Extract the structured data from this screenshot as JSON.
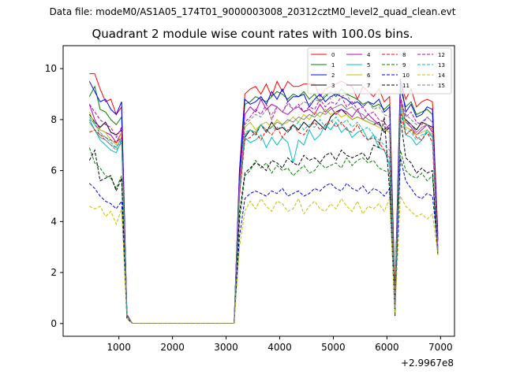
{
  "figure": {
    "suptitle": "Data file: modeM0/AS1A05_174T01_9000003008_20312cztM0_level2_quad_clean.evt",
    "title": "Quadrant 2 module wise count rates with 100.0s bins.",
    "offset_text": "+2.9967e8"
  },
  "chart_data": {
    "type": "line",
    "title": "Quadrant 2 module wise count rates with 100.0s bins.",
    "xlabel": "",
    "ylabel": "",
    "x_offset": 299670000,
    "xlim": [
      -40,
      7260
    ],
    "ylim": [
      -0.5,
      10.9
    ],
    "xticks": [
      1000,
      2000,
      3000,
      4000,
      5000,
      6000,
      7000
    ],
    "xtick_labels": [
      "1000",
      "2000",
      "3000",
      "4000",
      "5000",
      "6000",
      "7000"
    ],
    "yticks": [
      0,
      2,
      4,
      6,
      8,
      10
    ],
    "ytick_labels": [
      "0",
      "2",
      "4",
      "6",
      "8",
      "10"
    ],
    "grid": false,
    "legend_position": "top-right",
    "legend_columns": 4,
    "x": [
      450,
      550,
      650,
      750,
      850,
      950,
      1050,
      1150,
      1250,
      1350,
      1450,
      1550,
      1650,
      1750,
      1850,
      1950,
      2050,
      2150,
      2250,
      2350,
      2450,
      2550,
      2650,
      2750,
      2850,
      2950,
      3050,
      3150,
      3250,
      3350,
      3450,
      3550,
      3650,
      3750,
      3850,
      3950,
      4050,
      4150,
      4250,
      4350,
      4450,
      4550,
      4650,
      4750,
      4850,
      4950,
      5050,
      5150,
      5250,
      5350,
      5450,
      5550,
      5650,
      5750,
      5850,
      5950,
      6050,
      6150,
      6250,
      6350,
      6450,
      6550,
      6650,
      6750,
      6850,
      6950
    ],
    "series": [
      {
        "name": "0",
        "color": "#ff0000",
        "style": "solid",
        "values": [
          9.8,
          9.8,
          9.2,
          8.7,
          8.8,
          8.2,
          8.5,
          0.35,
          0.01,
          0.01,
          0.01,
          0.01,
          0.01,
          0.01,
          0.01,
          0.01,
          0.01,
          0.01,
          0.01,
          0.01,
          0.01,
          0.01,
          0.01,
          0.01,
          0.01,
          0.01,
          0.01,
          0.01,
          6.0,
          9.0,
          9.2,
          9.3,
          9.0,
          9.4,
          8.9,
          9.5,
          9.1,
          9.5,
          9.3,
          9.3,
          9.4,
          9.4,
          9.4,
          8.9,
          9.2,
          9.3,
          9.4,
          9.5,
          9.4,
          9.3,
          8.8,
          9.3,
          9.1,
          8.9,
          9.2,
          8.7,
          8.9,
          1.2,
          9.5,
          8.8,
          9.2,
          8.5,
          8.7,
          8.8,
          8.7,
          3.5
        ]
      },
      {
        "name": "1",
        "color": "#008000",
        "style": "solid",
        "values": [
          8.9,
          9.3,
          8.4,
          8.3,
          8.0,
          7.8,
          8.1,
          0.3,
          0.01,
          0.01,
          0.01,
          0.01,
          0.01,
          0.01,
          0.01,
          0.01,
          0.01,
          0.01,
          0.01,
          0.01,
          0.01,
          0.01,
          0.01,
          0.01,
          0.01,
          0.01,
          0.01,
          0.01,
          5.8,
          8.6,
          8.7,
          8.9,
          8.8,
          8.7,
          8.9,
          9.1,
          9.0,
          8.8,
          9.0,
          8.9,
          9.1,
          8.8,
          9.0,
          8.7,
          8.9,
          9.1,
          8.9,
          9.2,
          9.0,
          8.9,
          8.8,
          8.6,
          8.7,
          8.5,
          8.6,
          8.4,
          8.6,
          1.0,
          9.2,
          8.5,
          8.7,
          8.2,
          8.3,
          8.4,
          8.2,
          3.2
        ]
      },
      {
        "name": "2",
        "color": "#0000ff",
        "style": "solid",
        "values": [
          9.5,
          9.1,
          8.7,
          8.8,
          8.4,
          8.2,
          8.7,
          0.35,
          0.01,
          0.01,
          0.01,
          0.01,
          0.01,
          0.01,
          0.01,
          0.01,
          0.01,
          0.01,
          0.01,
          0.01,
          0.01,
          0.01,
          0.01,
          0.01,
          0.01,
          0.01,
          0.01,
          0.01,
          6.0,
          8.8,
          8.6,
          8.7,
          8.9,
          8.6,
          9.1,
          8.8,
          9.2,
          8.7,
          8.9,
          8.9,
          9.0,
          8.5,
          8.8,
          9.0,
          8.7,
          8.9,
          9.0,
          8.9,
          8.8,
          8.6,
          8.7,
          8.5,
          8.7,
          8.6,
          8.8,
          8.3,
          8.5,
          0.8,
          9.6,
          8.3,
          8.6,
          8.1,
          8.2,
          8.5,
          8.4,
          3.3
        ]
      },
      {
        "name": "3",
        "color": "#000000",
        "style": "solid",
        "values": [
          8.2,
          7.9,
          7.7,
          7.9,
          7.5,
          7.4,
          7.6,
          0.3,
          0.01,
          0.01,
          0.01,
          0.01,
          0.01,
          0.01,
          0.01,
          0.01,
          0.01,
          0.01,
          0.01,
          0.01,
          0.01,
          0.01,
          0.01,
          0.01,
          0.01,
          0.01,
          0.01,
          0.01,
          5.2,
          7.3,
          7.6,
          7.4,
          7.8,
          7.5,
          7.9,
          7.6,
          7.7,
          7.5,
          7.8,
          7.6,
          7.9,
          7.7,
          8.0,
          7.8,
          7.6,
          8.1,
          8.3,
          8.4,
          8.2,
          8.0,
          8.1,
          8.0,
          7.9,
          7.8,
          7.9,
          7.5,
          7.7,
          0.9,
          8.2,
          8.0,
          7.8,
          7.6,
          7.9,
          7.8,
          7.7,
          2.7
        ]
      },
      {
        "name": "4",
        "color": "#c000c0",
        "style": "solid",
        "values": [
          8.6,
          8.0,
          7.6,
          7.5,
          7.4,
          7.1,
          7.5,
          0.3,
          0.01,
          0.01,
          0.01,
          0.01,
          0.01,
          0.01,
          0.01,
          0.01,
          0.01,
          0.01,
          0.01,
          0.01,
          0.01,
          0.01,
          0.01,
          0.01,
          0.01,
          0.01,
          0.01,
          0.01,
          5.6,
          8.2,
          8.5,
          8.3,
          8.8,
          8.4,
          8.6,
          8.5,
          8.3,
          8.2,
          8.4,
          8.5,
          8.3,
          8.4,
          8.2,
          8.6,
          8.3,
          8.5,
          8.2,
          8.4,
          8.3,
          8.1,
          8.4,
          8.0,
          8.2,
          8.0,
          7.8,
          7.6,
          7.8,
          0.7,
          8.8,
          7.9,
          7.7,
          7.4,
          7.6,
          7.8,
          7.5,
          2.9
        ]
      },
      {
        "name": "5",
        "color": "#00c0c0",
        "style": "solid",
        "values": [
          8.0,
          7.6,
          7.2,
          7.0,
          6.8,
          6.7,
          7.2,
          0.3,
          0.01,
          0.01,
          0.01,
          0.01,
          0.01,
          0.01,
          0.01,
          0.01,
          0.01,
          0.01,
          0.01,
          0.01,
          0.01,
          0.01,
          0.01,
          0.01,
          0.01,
          0.01,
          0.01,
          0.01,
          5.1,
          7.3,
          7.1,
          7.2,
          7.4,
          6.9,
          7.3,
          7.0,
          7.3,
          7.1,
          6.3,
          7.2,
          7.0,
          7.6,
          7.2,
          7.4,
          7.8,
          7.6,
          7.9,
          7.5,
          7.7,
          7.3,
          7.5,
          7.6,
          7.2,
          7.4,
          6.9,
          6.8,
          6.2,
          0.6,
          8.6,
          7.4,
          7.3,
          7.0,
          7.2,
          7.6,
          7.3,
          2.8
        ]
      },
      {
        "name": "6",
        "color": "#c0c000",
        "style": "solid",
        "values": [
          8.3,
          7.8,
          7.6,
          7.5,
          7.2,
          7.0,
          7.5,
          0.3,
          0.01,
          0.01,
          0.01,
          0.01,
          0.01,
          0.01,
          0.01,
          0.01,
          0.01,
          0.01,
          0.01,
          0.01,
          0.01,
          0.01,
          0.01,
          0.01,
          0.01,
          0.01,
          0.01,
          0.01,
          5.3,
          7.7,
          7.9,
          7.6,
          7.8,
          7.9,
          7.7,
          8.0,
          7.8,
          7.9,
          8.1,
          7.9,
          8.2,
          8.0,
          8.3,
          8.1,
          8.4,
          8.2,
          8.3,
          8.1,
          8.2,
          8.0,
          8.1,
          8.0,
          7.9,
          7.8,
          7.7,
          7.6,
          7.5,
          0.6,
          8.6,
          7.7,
          7.6,
          7.4,
          7.5,
          7.6,
          7.4,
          2.9
        ]
      },
      {
        "name": "7",
        "color": "#808080",
        "style": "solid",
        "values": [
          7.9,
          7.6,
          7.3,
          7.2,
          7.0,
          6.9,
          7.3,
          0.3,
          0.01,
          0.01,
          0.01,
          0.01,
          0.01,
          0.01,
          0.01,
          0.01,
          0.01,
          0.01,
          0.01,
          0.01,
          0.01,
          0.01,
          0.01,
          0.01,
          0.01,
          0.01,
          0.01,
          0.01,
          5.0,
          7.4,
          7.6,
          7.5,
          7.8,
          7.6,
          7.7,
          7.9,
          7.8,
          8.0,
          7.9,
          8.1,
          8.0,
          8.2,
          8.1,
          8.3,
          8.2,
          8.4,
          8.5,
          8.6,
          8.4,
          8.5,
          8.3,
          8.2,
          8.0,
          7.9,
          7.8,
          7.6,
          7.7,
          0.6,
          8.9,
          7.9,
          7.8,
          7.5,
          7.7,
          7.8,
          7.6,
          2.8
        ]
      },
      {
        "name": "8",
        "color": "#ff0000",
        "style": "dashed",
        "values": [
          7.5,
          7.6,
          7.4,
          7.3,
          7.2,
          7.1,
          7.3,
          0.3,
          0.01,
          0.01,
          0.01,
          0.01,
          0.01,
          0.01,
          0.01,
          0.01,
          0.01,
          0.01,
          0.01,
          0.01,
          0.01,
          0.01,
          0.01,
          0.01,
          0.01,
          0.01,
          0.01,
          0.01,
          5.0,
          7.2,
          7.3,
          7.5,
          7.2,
          7.6,
          7.4,
          7.7,
          7.3,
          7.6,
          7.8,
          7.5,
          7.4,
          7.7,
          7.9,
          7.6,
          7.8,
          8.0,
          7.7,
          7.9,
          7.6,
          7.5,
          7.8,
          7.4,
          7.2,
          7.3,
          7.1,
          6.8,
          6.5,
          0.5,
          8.3,
          7.4,
          7.6,
          7.3,
          7.2,
          7.5,
          7.1,
          2.7
        ]
      },
      {
        "name": "9",
        "color": "#008000",
        "style": "dashed",
        "values": [
          6.9,
          6.3,
          6.1,
          5.8,
          5.7,
          5.3,
          5.8,
          0.2,
          0.01,
          0.01,
          0.01,
          0.01,
          0.01,
          0.01,
          0.01,
          0.01,
          0.01,
          0.01,
          0.01,
          0.01,
          0.01,
          0.01,
          0.01,
          0.01,
          0.01,
          0.01,
          0.01,
          0.01,
          4.0,
          5.8,
          6.0,
          6.4,
          6.1,
          6.3,
          5.9,
          6.2,
          6.0,
          6.1,
          5.8,
          6.0,
          6.2,
          5.9,
          6.0,
          6.3,
          6.1,
          6.2,
          6.3,
          6.1,
          6.5,
          6.2,
          6.4,
          6.5,
          6.3,
          6.4,
          6.1,
          6.0,
          5.9,
          0.4,
          6.8,
          6.0,
          5.8,
          5.7,
          5.9,
          5.6,
          5.8,
          2.7
        ]
      },
      {
        "name": "10",
        "color": "#0000ff",
        "style": "dashed",
        "values": [
          5.5,
          5.3,
          5.0,
          4.8,
          4.7,
          4.5,
          4.8,
          0.2,
          0.01,
          0.01,
          0.01,
          0.01,
          0.01,
          0.01,
          0.01,
          0.01,
          0.01,
          0.01,
          0.01,
          0.01,
          0.01,
          0.01,
          0.01,
          0.01,
          0.01,
          0.01,
          0.01,
          0.01,
          3.4,
          4.9,
          5.1,
          5.2,
          5.1,
          5.0,
          5.2,
          5.1,
          5.3,
          5.0,
          5.1,
          5.2,
          5.0,
          5.1,
          5.3,
          5.2,
          5.4,
          5.5,
          5.3,
          5.2,
          5.5,
          5.3,
          5.2,
          5.4,
          5.1,
          5.3,
          5.2,
          5.0,
          5.3,
          0.4,
          6.5,
          5.6,
          5.3,
          5.0,
          4.9,
          5.1,
          5.0,
          3.0
        ]
      },
      {
        "name": "11",
        "color": "#000000",
        "style": "dashed",
        "values": [
          6.4,
          6.8,
          5.6,
          5.7,
          5.8,
          5.2,
          5.7,
          0.2,
          0.01,
          0.01,
          0.01,
          0.01,
          0.01,
          0.01,
          0.01,
          0.01,
          0.01,
          0.01,
          0.01,
          0.01,
          0.01,
          0.01,
          0.01,
          0.01,
          0.01,
          0.01,
          0.01,
          0.01,
          4.3,
          5.9,
          6.1,
          6.3,
          6.2,
          6.0,
          6.4,
          6.3,
          6.1,
          6.5,
          6.3,
          6.2,
          6.6,
          6.4,
          6.5,
          6.3,
          6.6,
          6.7,
          6.4,
          6.8,
          6.6,
          6.5,
          6.6,
          6.7,
          6.4,
          7.0,
          6.9,
          8.1,
          5.2,
          0.3,
          8.1,
          6.5,
          6.3,
          5.9,
          6.1,
          5.9,
          6.0,
          2.7
        ]
      },
      {
        "name": "12",
        "color": "#c000c0",
        "style": "dashed",
        "values": [
          8.6,
          8.3,
          8.0,
          7.8,
          7.7,
          7.3,
          7.7,
          0.3,
          0.01,
          0.01,
          0.01,
          0.01,
          0.01,
          0.01,
          0.01,
          0.01,
          0.01,
          0.01,
          0.01,
          0.01,
          0.01,
          0.01,
          0.01,
          0.01,
          0.01,
          0.01,
          0.01,
          0.01,
          5.4,
          7.9,
          8.1,
          8.4,
          8.2,
          8.6,
          8.0,
          8.5,
          8.3,
          8.7,
          8.4,
          8.6,
          8.3,
          8.5,
          8.4,
          8.8,
          8.5,
          8.7,
          8.6,
          8.9,
          8.5,
          8.7,
          8.4,
          8.5,
          8.2,
          8.3,
          8.0,
          7.9,
          7.6,
          0.6,
          8.9,
          8.1,
          8.3,
          7.9,
          7.8,
          8.1,
          7.9,
          2.9
        ]
      },
      {
        "name": "13",
        "color": "#00c0c0",
        "style": "dashed",
        "values": [
          8.1,
          7.8,
          7.5,
          7.3,
          7.1,
          6.9,
          7.2,
          0.3,
          0.01,
          0.01,
          0.01,
          0.01,
          0.01,
          0.01,
          0.01,
          0.01,
          0.01,
          0.01,
          0.01,
          0.01,
          0.01,
          0.01,
          0.01,
          0.01,
          0.01,
          0.01,
          0.01,
          0.01,
          5.2,
          7.5,
          7.6,
          7.4,
          7.8,
          7.5,
          7.7,
          7.6,
          7.8,
          7.5,
          7.7,
          7.9,
          7.6,
          7.8,
          7.7,
          8.0,
          7.7,
          7.9,
          8.1,
          7.8,
          8.0,
          7.7,
          7.9,
          7.6,
          7.7,
          7.4,
          7.2,
          7.0,
          6.8,
          0.5,
          8.4,
          7.6,
          7.5,
          7.2,
          7.4,
          7.5,
          7.3,
          2.8
        ]
      },
      {
        "name": "14",
        "color": "#c0c000",
        "style": "dashed",
        "values": [
          4.6,
          4.5,
          4.6,
          4.2,
          4.4,
          3.9,
          4.5,
          0.2,
          0.01,
          0.01,
          0.01,
          0.01,
          0.01,
          0.01,
          0.01,
          0.01,
          0.01,
          0.01,
          0.01,
          0.01,
          0.01,
          0.01,
          0.01,
          0.01,
          0.01,
          0.01,
          0.01,
          0.01,
          3.0,
          4.4,
          4.8,
          4.5,
          4.9,
          4.6,
          4.4,
          4.8,
          4.7,
          4.4,
          4.5,
          4.9,
          4.3,
          4.6,
          4.8,
          4.5,
          4.4,
          4.7,
          4.5,
          4.9,
          4.6,
          4.4,
          4.8,
          4.3,
          4.6,
          4.5,
          4.7,
          4.4,
          4.9,
          0.4,
          5.0,
          4.6,
          4.4,
          4.2,
          4.3,
          4.1,
          4.3,
          2.7
        ]
      },
      {
        "name": "15",
        "color": "#808080",
        "style": "dashed",
        "values": [
          8.0,
          7.9,
          7.4,
          7.2,
          7.0,
          6.8,
          7.1,
          0.3,
          0.01,
          0.01,
          0.01,
          0.01,
          0.01,
          0.01,
          0.01,
          0.01,
          0.01,
          0.01,
          0.01,
          0.01,
          0.01,
          0.01,
          0.01,
          0.01,
          0.01,
          0.01,
          0.01,
          0.01,
          5.3,
          7.8,
          8.0,
          8.2,
          8.1,
          8.4,
          8.2,
          8.5,
          8.3,
          8.6,
          8.4,
          8.5,
          8.7,
          8.6,
          8.8,
          8.7,
          9.0,
          8.8,
          9.1,
          8.9,
          9.0,
          8.6,
          8.8,
          8.5,
          8.7,
          8.4,
          8.5,
          8.2,
          8.1,
          0.6,
          8.6,
          8.2,
          8.0,
          7.8,
          7.9,
          8.1,
          7.9,
          2.9
        ]
      }
    ]
  }
}
